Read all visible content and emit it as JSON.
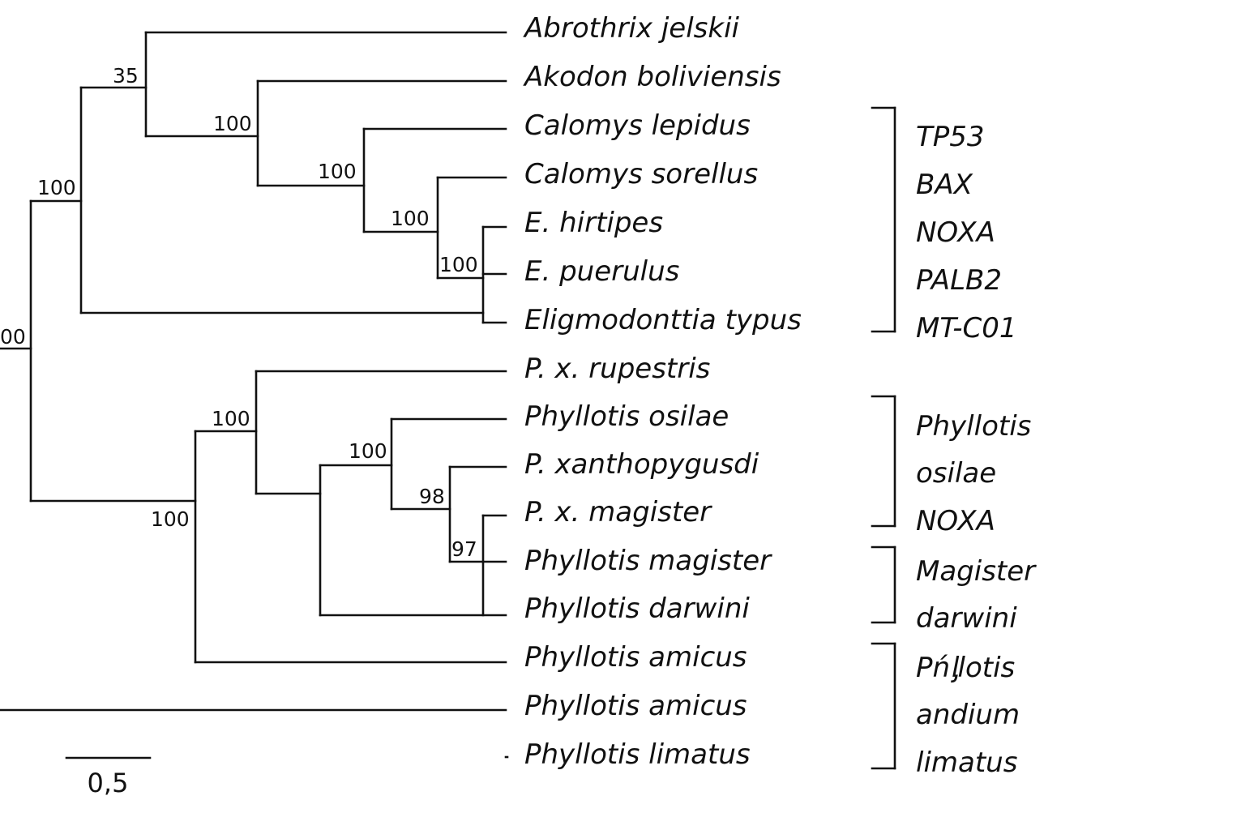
{
  "taxa": [
    "Abrothrix jelskii",
    "Akodon boliviensis",
    "Calomys lepidus",
    "Calomys sorellus",
    "E. hirtipes",
    "E. puerulus",
    "Eligmodonttia typus",
    "P. x. rupestris",
    "Phyllotis osilae",
    "P. xanthopygusdi",
    "P. x. magister",
    "Phyllotis magister",
    "Phyllotis darwini",
    "Phyllotis amicus",
    "Phyllotis amicus",
    "Phyllotis limatus"
  ],
  "support_values": {
    "root": "00",
    "sigmodontini_clade": "100",
    "abrothrix_clade": "35",
    "akodon_clade": "100",
    "calomys_clade": "100",
    "sorellus_clade": "100",
    "eligmodontia_clade": "100",
    "phyllotis_outer": "100",
    "phyllotis_inner": "100",
    "osilae_clade": "100",
    "magister_clade": "98",
    "darwini_clade": "97"
  },
  "groups": [
    {
      "lines": [
        "TP53",
        "BAX",
        "NOXA",
        "PALB2",
        "MT-C01"
      ]
    },
    {
      "lines": [
        "Phyllotis",
        "osilae",
        "NOXA"
      ]
    },
    {
      "lines": [
        "Magister",
        "darwini"
      ]
    },
    {
      "lines": [
        "Pńᶅlotis",
        "andium",
        "limatus"
      ]
    }
  ],
  "scale_bar": {
    "label": "0,5"
  }
}
